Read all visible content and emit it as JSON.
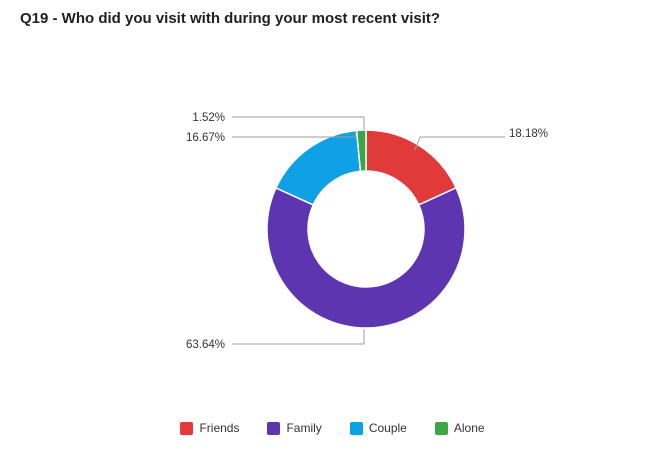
{
  "title": "Q19 - Who did you visit with during your most recent visit?",
  "chart_data": {
    "type": "pie",
    "donut": true,
    "title": "Q19 - Who did you visit with during your most recent visit?",
    "categories": [
      "Friends",
      "Family",
      "Couple",
      "Alone"
    ],
    "values": [
      18.18,
      63.64,
      16.67,
      1.52
    ],
    "labels": [
      "18.18%",
      "63.64%",
      "16.67%",
      "1.52%"
    ],
    "colors": [
      "#e03a3a",
      "#5e35b1",
      "#0fa0e6",
      "#3aa644"
    ],
    "legend": "bottom"
  }
}
